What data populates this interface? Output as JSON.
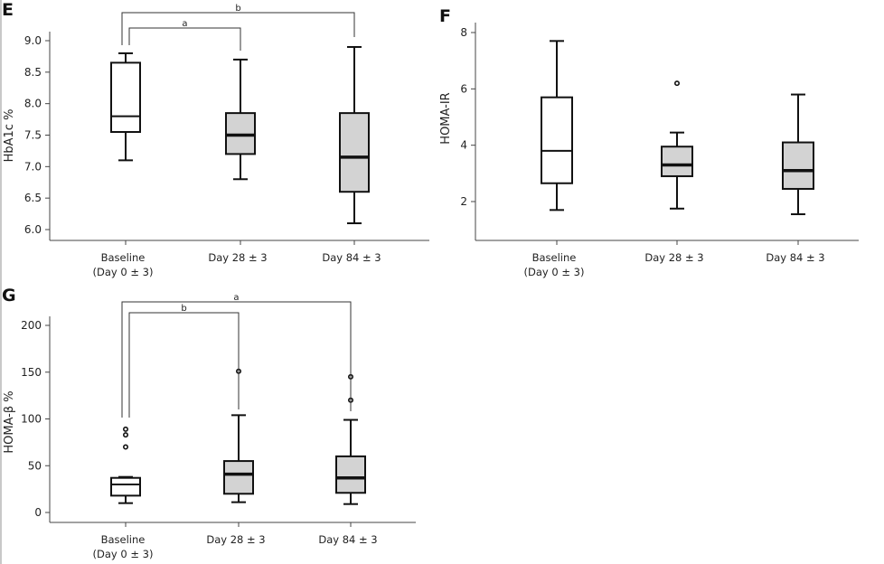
{
  "chart_data": [
    {
      "panel_label": "E",
      "type": "box",
      "ylabel": "HbA1c %",
      "ylim": [
        5.9,
        9.15
      ],
      "yticks": [
        "6.0",
        "6.5",
        "7.0",
        "7.5",
        "8.0",
        "8.5",
        "9.0"
      ],
      "categories": [
        [
          "Baseline",
          "(Day 0 ± 3)"
        ],
        [
          "Day 28 ± 3"
        ],
        [
          "Day 84 ± 3"
        ]
      ],
      "boxes": [
        {
          "min": 7.1,
          "q1": 7.55,
          "median": 7.8,
          "q3": 8.65,
          "max": 8.8,
          "outliers": [],
          "fill": "#ffffff"
        },
        {
          "min": 6.8,
          "q1": 7.2,
          "median": 7.5,
          "q3": 7.85,
          "max": 8.7,
          "outliers": [],
          "fill": "#d3d3d3"
        },
        {
          "min": 6.1,
          "q1": 6.6,
          "median": 7.15,
          "q3": 7.85,
          "max": 8.9,
          "outliers": [],
          "fill": "#d3d3d3"
        }
      ],
      "significance": [
        {
          "from": 0,
          "to": 2,
          "label": "b"
        },
        {
          "from": 0,
          "to": 1,
          "label": "a"
        }
      ]
    },
    {
      "panel_label": "F",
      "type": "box",
      "ylabel": "HOMA-IR",
      "ylim": [
        0.6,
        8.3
      ],
      "yticks": [
        "2",
        "4",
        "6",
        "8"
      ],
      "categories": [
        [
          "Baseline",
          "(Day 0 ± 3)"
        ],
        [
          "Day 28 ± 3"
        ],
        [
          "Day 84 ± 3"
        ]
      ],
      "boxes": [
        {
          "min": 1.7,
          "q1": 2.65,
          "median": 3.8,
          "q3": 5.7,
          "max": 7.7,
          "outliers": [],
          "fill": "#ffffff"
        },
        {
          "min": 1.75,
          "q1": 2.9,
          "median": 3.3,
          "q3": 3.95,
          "max": 4.45,
          "outliers": [
            6.2
          ],
          "fill": "#d3d3d3"
        },
        {
          "min": 1.55,
          "q1": 2.45,
          "median": 3.1,
          "q3": 4.1,
          "max": 5.8,
          "outliers": [],
          "fill": "#d3d3d3"
        }
      ],
      "significance": []
    },
    {
      "panel_label": "G",
      "type": "box",
      "ylabel": "HOMA-β %",
      "ylim": [
        -10,
        210
      ],
      "yticks": [
        "0",
        "50",
        "100",
        "150",
        "200"
      ],
      "categories": [
        [
          "Baseline",
          "(Day 0 ± 3)"
        ],
        [
          "Day 28 ± 3"
        ],
        [
          "Day 84 ± 3"
        ]
      ],
      "boxes": [
        {
          "min": 10,
          "q1": 18,
          "median": 30,
          "q3": 37,
          "max": 38,
          "outliers": [
            70,
            83,
            89
          ],
          "fill": "#ffffff"
        },
        {
          "min": 11,
          "q1": 20,
          "median": 41,
          "q3": 55,
          "max": 104,
          "outliers": [
            151
          ],
          "fill": "#d3d3d3"
        },
        {
          "min": 9,
          "q1": 21,
          "median": 37,
          "q3": 60,
          "max": 99,
          "outliers": [
            120,
            145
          ],
          "fill": "#d3d3d3"
        }
      ],
      "significance": [
        {
          "from": 0,
          "to": 2,
          "label": "a"
        },
        {
          "from": 0,
          "to": 1,
          "label": "b"
        }
      ]
    }
  ]
}
